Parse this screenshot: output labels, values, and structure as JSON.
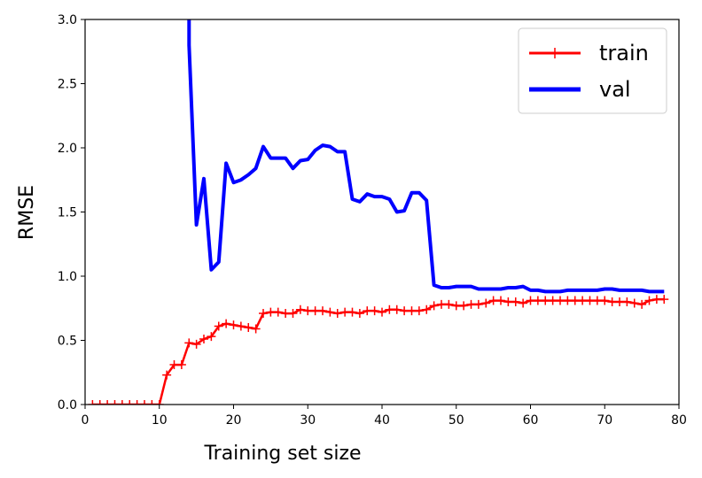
{
  "chart_data": {
    "type": "line",
    "xlabel": "Training set size",
    "ylabel": "RMSE",
    "xlim": [
      0,
      80
    ],
    "ylim": [
      0,
      3.0
    ],
    "xticks": [
      "0",
      "10",
      "20",
      "30",
      "40",
      "50",
      "60",
      "70",
      "80"
    ],
    "yticks": [
      "0.0",
      "0.5",
      "1.0",
      "1.5",
      "2.0",
      "2.5",
      "3.0"
    ],
    "grid": false,
    "legend_position": "top-right",
    "series": [
      {
        "name": "train",
        "color": "#ff0000",
        "marker": "+",
        "x": [
          1,
          2,
          3,
          4,
          5,
          6,
          7,
          8,
          9,
          10,
          11,
          12,
          13,
          14,
          15,
          16,
          17,
          18,
          19,
          20,
          21,
          22,
          23,
          24,
          25,
          26,
          27,
          28,
          29,
          30,
          31,
          32,
          33,
          34,
          35,
          36,
          37,
          38,
          39,
          40,
          41,
          42,
          43,
          44,
          45,
          46,
          47,
          48,
          49,
          50,
          51,
          52,
          53,
          54,
          55,
          56,
          57,
          58,
          59,
          60,
          61,
          62,
          63,
          64,
          65,
          66,
          67,
          68,
          69,
          70,
          71,
          72,
          73,
          74,
          75,
          76,
          77,
          78
        ],
        "values": [
          0,
          0,
          0,
          0,
          0,
          0,
          0,
          0,
          0,
          0,
          0.23,
          0.31,
          0.31,
          0.48,
          0.47,
          0.51,
          0.53,
          0.61,
          0.63,
          0.62,
          0.61,
          0.6,
          0.59,
          0.71,
          0.72,
          0.72,
          0.71,
          0.71,
          0.74,
          0.73,
          0.73,
          0.73,
          0.72,
          0.71,
          0.72,
          0.72,
          0.71,
          0.73,
          0.73,
          0.72,
          0.74,
          0.74,
          0.73,
          0.73,
          0.73,
          0.74,
          0.77,
          0.78,
          0.78,
          0.77,
          0.77,
          0.78,
          0.78,
          0.79,
          0.81,
          0.81,
          0.8,
          0.8,
          0.79,
          0.81,
          0.81,
          0.81,
          0.81,
          0.81,
          0.81,
          0.81,
          0.81,
          0.81,
          0.81,
          0.81,
          0.8,
          0.8,
          0.8,
          0.79,
          0.78,
          0.81,
          0.82,
          0.82
        ]
      },
      {
        "name": "val",
        "color": "#0000ff",
        "marker": "",
        "x": [
          14,
          15,
          16,
          17,
          18,
          19,
          20,
          21,
          22,
          23,
          24,
          25,
          26,
          27,
          28,
          29,
          30,
          31,
          32,
          33,
          34,
          35,
          36,
          37,
          38,
          39,
          40,
          41,
          42,
          43,
          44,
          45,
          46,
          47,
          48,
          49,
          50,
          51,
          52,
          53,
          54,
          55,
          56,
          57,
          58,
          59,
          60,
          61,
          62,
          63,
          64,
          65,
          66,
          67,
          68,
          69,
          70,
          71,
          72,
          73,
          74,
          75,
          76,
          77,
          78
        ],
        "values": [
          2.8,
          1.4,
          1.76,
          1.05,
          1.11,
          1.88,
          1.73,
          1.75,
          1.79,
          1.84,
          2.01,
          1.92,
          1.92,
          1.92,
          1.84,
          1.9,
          1.91,
          1.98,
          2.02,
          2.01,
          1.97,
          1.97,
          1.6,
          1.58,
          1.64,
          1.62,
          1.62,
          1.6,
          1.5,
          1.51,
          1.65,
          1.65,
          1.59,
          0.93,
          0.91,
          0.91,
          0.92,
          0.92,
          0.92,
          0.9,
          0.9,
          0.9,
          0.9,
          0.91,
          0.91,
          0.92,
          0.89,
          0.89,
          0.88,
          0.88,
          0.88,
          0.89,
          0.89,
          0.89,
          0.89,
          0.89,
          0.9,
          0.9,
          0.89,
          0.89,
          0.89,
          0.89,
          0.88,
          0.88,
          0.88
        ]
      }
    ]
  }
}
